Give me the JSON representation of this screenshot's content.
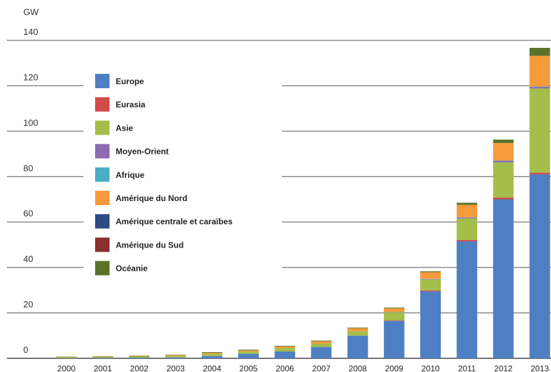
{
  "chart_data": {
    "type": "bar",
    "stacked": true,
    "unit_label": "GW",
    "title": "",
    "xlabel": "",
    "ylabel": "",
    "ylim": [
      0,
      140
    ],
    "yticks": [
      0,
      20,
      40,
      60,
      80,
      100,
      120,
      140
    ],
    "grid": true,
    "legend_position": "left",
    "categories": [
      "2000",
      "2001",
      "2002",
      "2003",
      "2004",
      "2005",
      "2006",
      "2007",
      "2008",
      "2009",
      "2010",
      "2011",
      "2012",
      "2013"
    ],
    "series": [
      {
        "name": "Europe",
        "color": "#4f7fc3",
        "values": [
          0.1,
          0.2,
          0.3,
          0.4,
          1.0,
          2.0,
          3.0,
          5.0,
          10.0,
          16.5,
          29.5,
          51.5,
          70.0,
          81.0
        ]
      },
      {
        "name": "Eurasia",
        "color": "#d14b4b",
        "values": [
          0,
          0,
          0,
          0,
          0,
          0,
          0,
          0,
          0,
          0.2,
          0.4,
          0.6,
          0.8,
          0.8
        ]
      },
      {
        "name": "Asie",
        "color": "#a3be4a",
        "values": [
          0.4,
          0.4,
          0.6,
          0.7,
          1.0,
          1.0,
          1.5,
          1.5,
          2.0,
          3.5,
          4.8,
          9.5,
          15.5,
          37.0
        ]
      },
      {
        "name": "Moyen-Orient",
        "color": "#8c6bb1",
        "values": [
          0,
          0,
          0,
          0,
          0,
          0,
          0,
          0,
          0,
          0.1,
          0.2,
          0.4,
          0.7,
          0.7
        ]
      },
      {
        "name": "Afrique",
        "color": "#4bacc6",
        "values": [
          0,
          0,
          0,
          0,
          0,
          0,
          0,
          0,
          0,
          0.05,
          0.1,
          0.1,
          0.1,
          0.2
        ]
      },
      {
        "name": "Amérique du Nord",
        "color": "#f79a3b",
        "values": [
          0.1,
          0.2,
          0.2,
          0.3,
          0.4,
          0.5,
          0.7,
          1.0,
          1.2,
          1.7,
          2.9,
          5.5,
          7.7,
          13.5
        ]
      },
      {
        "name": "Amérique centrale et caraïbes",
        "color": "#2b4a86",
        "values": [
          0,
          0,
          0,
          0,
          0,
          0,
          0,
          0,
          0,
          0,
          0,
          0,
          0,
          0
        ]
      },
      {
        "name": "Amérique du Sud",
        "color": "#8b2e2e",
        "values": [
          0,
          0,
          0,
          0,
          0,
          0,
          0,
          0,
          0,
          0,
          0,
          0,
          0,
          0
        ]
      },
      {
        "name": "Océanie",
        "color": "#5a7329",
        "values": [
          0.1,
          0.1,
          0.1,
          0.2,
          0.3,
          0.3,
          0.3,
          0.3,
          0.3,
          0.3,
          0.4,
          0.9,
          1.5,
          3.5
        ]
      }
    ]
  }
}
